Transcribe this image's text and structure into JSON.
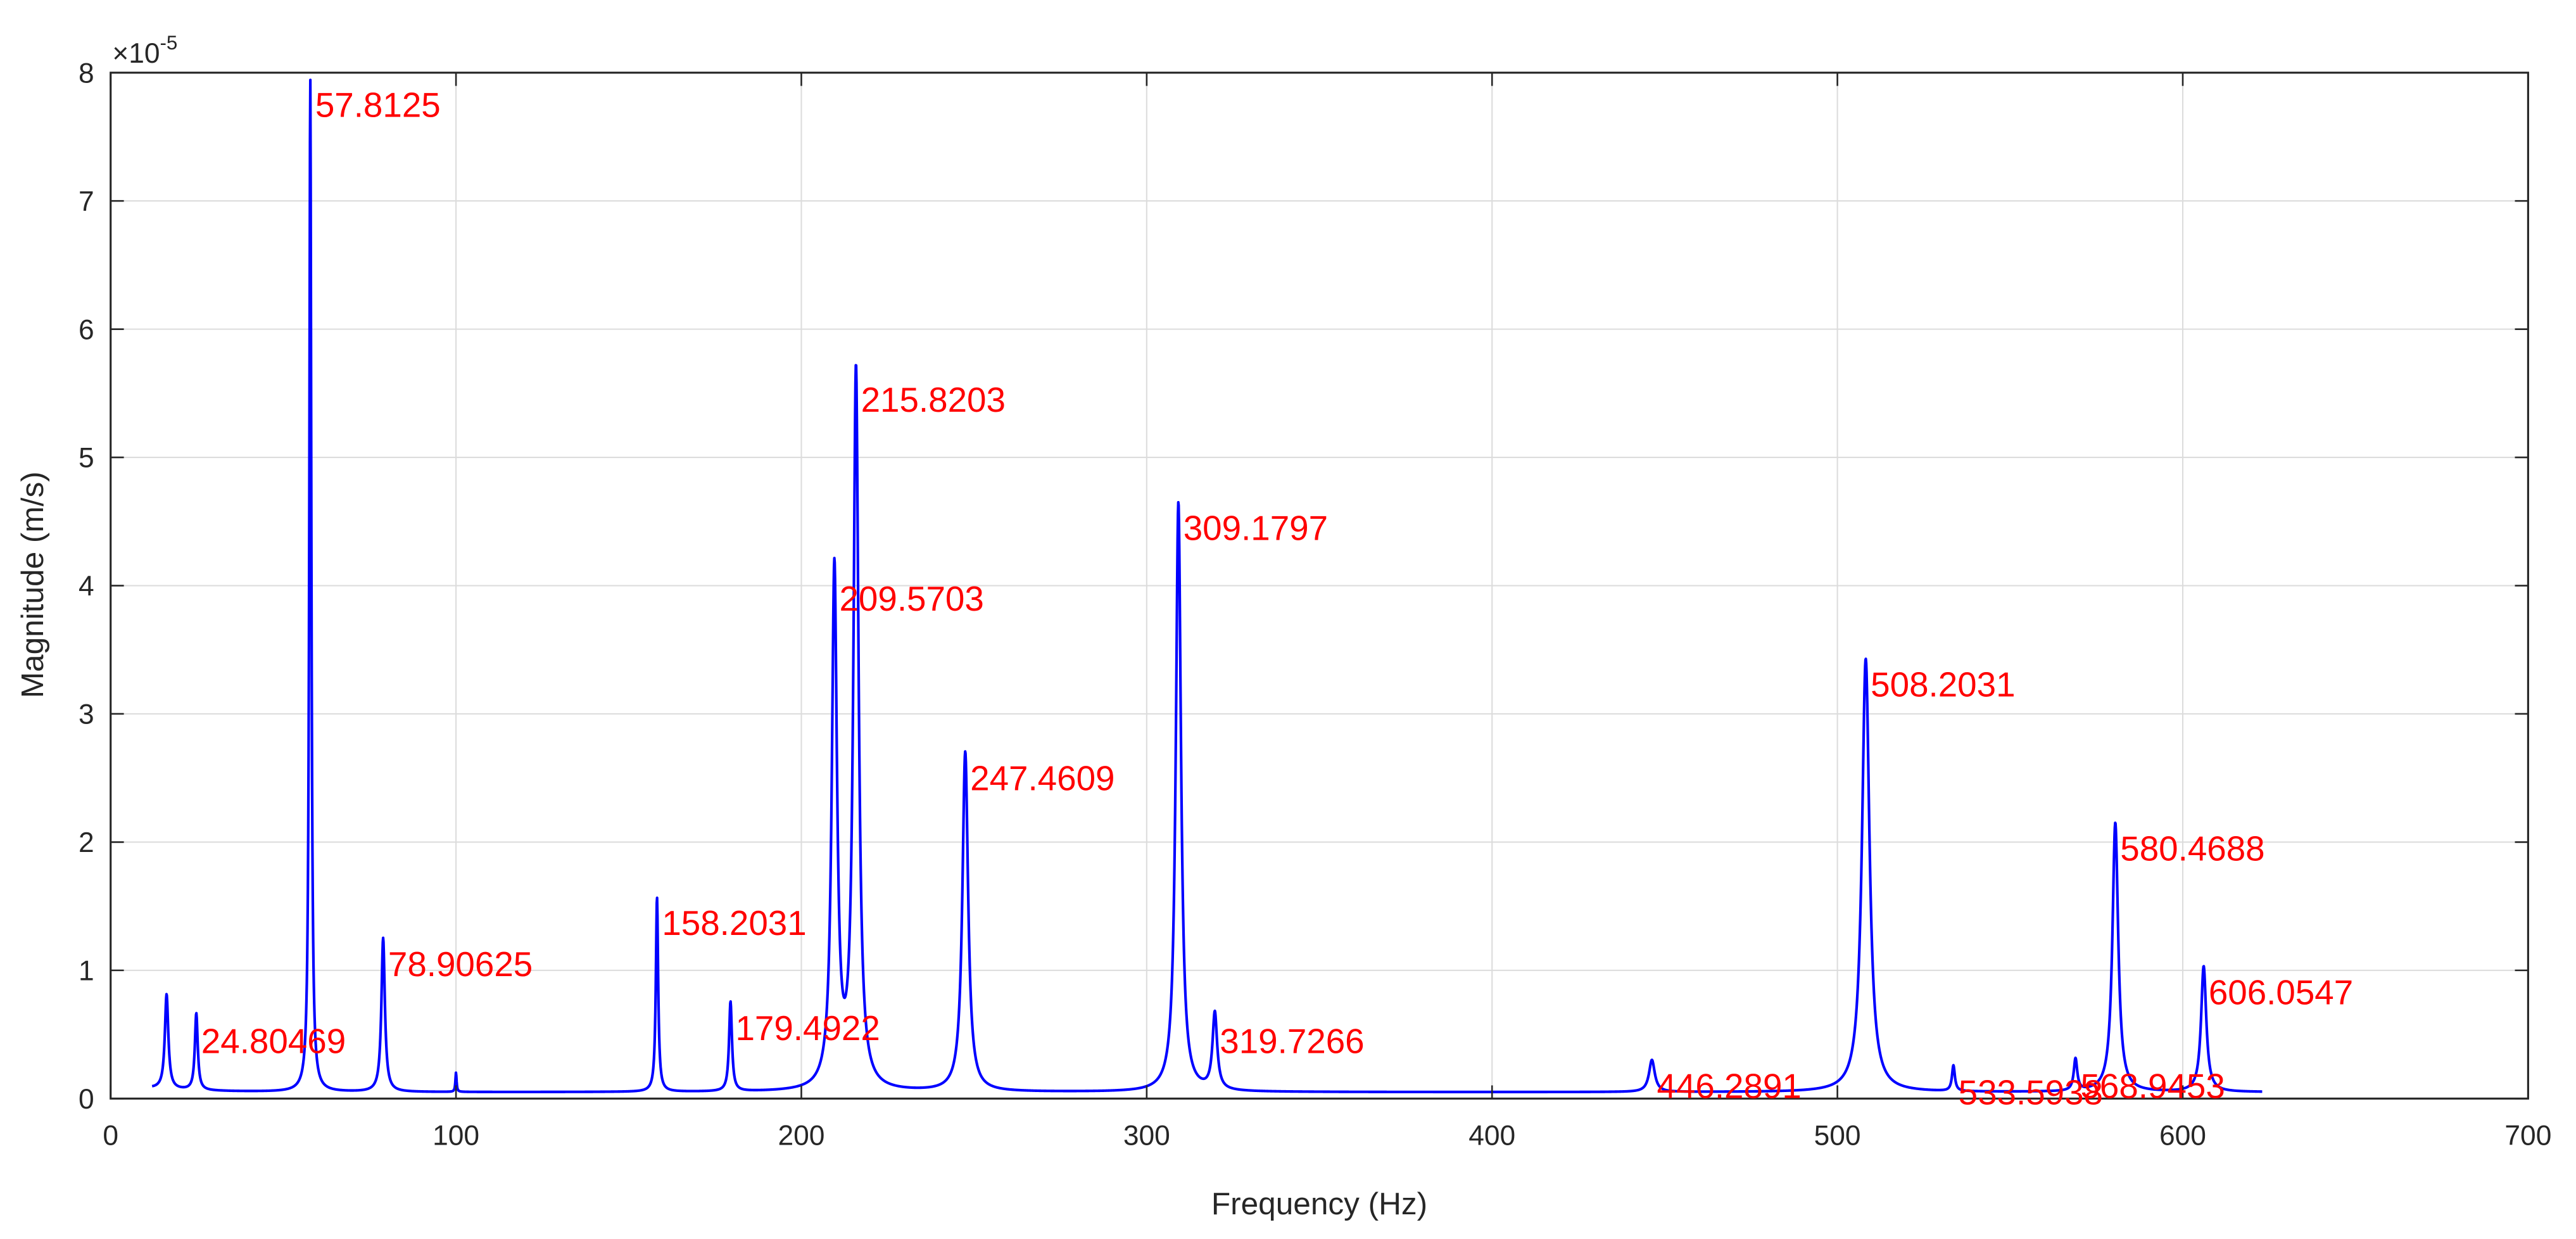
{
  "chart_data": {
    "type": "line",
    "title": "",
    "xlabel": "Frequency (Hz)",
    "ylabel": "Magnitude (m/s)",
    "y_exponent_label": "×10",
    "y_exponent": "-5",
    "xlim": [
      0,
      700
    ],
    "ylim": [
      0,
      8
    ],
    "y_scale": 1e-05,
    "grid": true,
    "x_ticks": [
      0,
      100,
      200,
      300,
      400,
      500,
      600,
      700
    ],
    "y_ticks": [
      0,
      1,
      2,
      3,
      4,
      5,
      6,
      7,
      8
    ],
    "x_range_data": [
      12,
      623
    ],
    "line_color": "#0000ff",
    "label_color": "#ff0000",
    "series": [
      {
        "name": "Magnitude",
        "peaks": [
          {
            "x": 16.2,
            "y": 0.74,
            "w": 0.6,
            "label": ""
          },
          {
            "x": 24.80469,
            "y": 0.6,
            "w": 0.5,
            "label": "24.80469"
          },
          {
            "x": 57.8125,
            "y": 7.9,
            "w": 0.35,
            "label": "57.8125"
          },
          {
            "x": 78.90625,
            "y": 1.2,
            "w": 0.6,
            "label": "78.90625"
          },
          {
            "x": 100.0,
            "y": 0.15,
            "w": 0.2,
            "label": ""
          },
          {
            "x": 158.2031,
            "y": 1.52,
            "w": 0.4,
            "label": "158.2031"
          },
          {
            "x": 179.4922,
            "y": 0.7,
            "w": 0.5,
            "label": "179.4922"
          },
          {
            "x": 209.5703,
            "y": 4.05,
            "w": 0.9,
            "label": "209.5703"
          },
          {
            "x": 215.8203,
            "y": 5.6,
            "w": 0.9,
            "label": "215.8203"
          },
          {
            "x": 247.4609,
            "y": 2.65,
            "w": 1.0,
            "label": "247.4609"
          },
          {
            "x": 309.1797,
            "y": 4.6,
            "w": 0.9,
            "label": "309.1797"
          },
          {
            "x": 319.7266,
            "y": 0.6,
            "w": 0.8,
            "label": "319.7266"
          },
          {
            "x": 446.2891,
            "y": 0.25,
            "w": 1.0,
            "label": "446.2891"
          },
          {
            "x": 508.2031,
            "y": 3.38,
            "w": 1.3,
            "label": "508.2031"
          },
          {
            "x": 533.5938,
            "y": 0.2,
            "w": 0.5,
            "label": "533.5938"
          },
          {
            "x": 568.9453,
            "y": 0.25,
            "w": 0.6,
            "label": "568.9453"
          },
          {
            "x": 580.4688,
            "y": 2.1,
            "w": 1.0,
            "label": "580.4688"
          },
          {
            "x": 606.0547,
            "y": 0.98,
            "w": 0.9,
            "label": "606.0547"
          }
        ],
        "baseline": 0.05
      }
    ],
    "annotations": [
      {
        "text": "57.8125",
        "x": 57.8125,
        "y": 7.9
      },
      {
        "text": "215.8203",
        "x": 215.8203,
        "y": 5.6
      },
      {
        "text": "309.1797",
        "x": 309.1797,
        "y": 4.6
      },
      {
        "text": "209.5703",
        "x": 209.5703,
        "y": 4.05
      },
      {
        "text": "508.2031",
        "x": 508.2031,
        "y": 3.38
      },
      {
        "text": "247.4609",
        "x": 247.4609,
        "y": 2.65
      },
      {
        "text": "580.4688",
        "x": 580.4688,
        "y": 2.1
      },
      {
        "text": "158.2031",
        "x": 158.2031,
        "y": 1.52
      },
      {
        "text": "78.90625",
        "x": 78.90625,
        "y": 1.2
      },
      {
        "text": "606.0547",
        "x": 606.0547,
        "y": 0.98
      },
      {
        "text": "179.4922",
        "x": 179.4922,
        "y": 0.7
      },
      {
        "text": "24.80469",
        "x": 24.80469,
        "y": 0.6
      },
      {
        "text": "319.7266",
        "x": 319.7266,
        "y": 0.6
      },
      {
        "text": "446.2891",
        "x": 446.2891,
        "y": 0.25
      },
      {
        "text": "568.9453",
        "x": 568.9453,
        "y": 0.25
      },
      {
        "text": "533.5938",
        "x": 533.5938,
        "y": 0.2
      }
    ]
  }
}
